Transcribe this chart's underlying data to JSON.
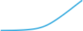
{
  "values": [
    50,
    51,
    52,
    53,
    54,
    55,
    57,
    59,
    62,
    65,
    69,
    74,
    80,
    87,
    96,
    108,
    123,
    142,
    165,
    193,
    226,
    264,
    306,
    352,
    400,
    450,
    502,
    555,
    610,
    665,
    720,
    778,
    835,
    892,
    948,
    1000
  ],
  "line_color": "#3EAEE0",
  "line_width": 1.5,
  "bg_color": "#ffffff"
}
